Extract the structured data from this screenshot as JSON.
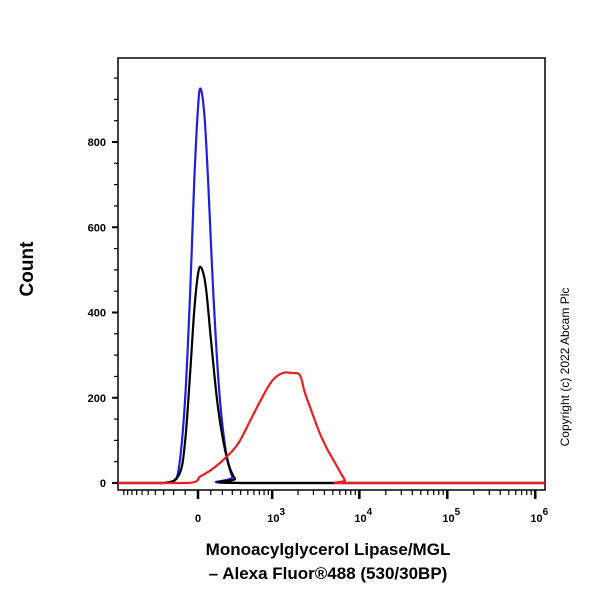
{
  "chart_data": {
    "type": "line",
    "xlabel_line1": "Monoacylglycerol Lipase/MGL",
    "xlabel_line2": "– Alexa Fluor®488 (530/30BP)",
    "ylabel": "Count",
    "xscale": "biexponential",
    "xlim": [
      -1170,
      1290000
    ],
    "ylim": [
      -16,
      1000
    ],
    "x_ticks": [
      {
        "value": 0,
        "label": "0"
      },
      {
        "value": 1000,
        "label": "10",
        "exp": "3"
      },
      {
        "value": 10000,
        "label": "10",
        "exp": "4"
      },
      {
        "value": 100000,
        "label": "10",
        "exp": "5"
      },
      {
        "value": 1000000,
        "label": "10",
        "exp": "6"
      }
    ],
    "y_ticks": [
      0,
      200,
      400,
      600,
      800
    ],
    "grid": false,
    "series": [
      {
        "color": "#1f1fe0",
        "points": [
          [
            -1170,
            0
          ],
          [
            -300,
            0
          ],
          [
            -200,
            5
          ],
          [
            -150,
            40
          ],
          [
            -100,
            200
          ],
          [
            -60,
            450
          ],
          [
            -30,
            700
          ],
          [
            0,
            880
          ],
          [
            20,
            925
          ],
          [
            50,
            860
          ],
          [
            80,
            700
          ],
          [
            120,
            450
          ],
          [
            170,
            220
          ],
          [
            230,
            80
          ],
          [
            300,
            15
          ],
          [
            400,
            0
          ],
          [
            1290000,
            0
          ]
        ]
      },
      {
        "color": "#000000",
        "points": [
          [
            -1170,
            0
          ],
          [
            -300,
            0
          ],
          [
            -150,
            20
          ],
          [
            -100,
            100
          ],
          [
            -60,
            260
          ],
          [
            -30,
            400
          ],
          [
            0,
            490
          ],
          [
            25,
            505
          ],
          [
            60,
            460
          ],
          [
            100,
            340
          ],
          [
            150,
            200
          ],
          [
            200,
            110
          ],
          [
            260,
            45
          ],
          [
            330,
            10
          ],
          [
            420,
            0
          ],
          [
            1290000,
            0
          ]
        ]
      },
      {
        "color": "#e82020",
        "points": [
          [
            -1170,
            0
          ],
          [
            -77,
            0
          ],
          [
            15,
            15
          ],
          [
            100,
            30
          ],
          [
            177,
            47
          ],
          [
            300,
            75
          ],
          [
            392,
            100
          ],
          [
            550,
            150
          ],
          [
            731,
            195
          ],
          [
            1000,
            240
          ],
          [
            1330,
            258
          ],
          [
            1700,
            258
          ],
          [
            2100,
            253
          ],
          [
            2400,
            211
          ],
          [
            2900,
            165
          ],
          [
            3540,
            117
          ],
          [
            4300,
            80
          ],
          [
            5300,
            47
          ],
          [
            6850,
            7
          ],
          [
            7850,
            0
          ],
          [
            1290000,
            0
          ]
        ]
      }
    ]
  },
  "copyright": "Copyright (c) 2022 Abcam Plc"
}
